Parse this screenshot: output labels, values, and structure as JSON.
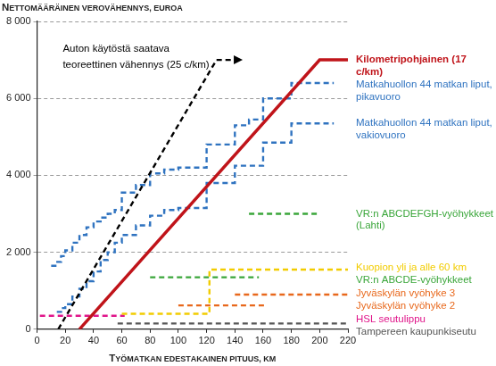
{
  "chart_data": {
    "type": "line",
    "y_label": "Nettomääräinen verovähennys, euroa",
    "x_label": "Työmatkan edestakainen pituus, km",
    "xlim": [
      0,
      220
    ],
    "xticks": [
      0,
      20,
      40,
      60,
      80,
      100,
      120,
      140,
      160,
      180,
      200,
      220
    ],
    "ylim": [
      0,
      8000
    ],
    "yticks": [
      0,
      {
        "value": 2000,
        "label": "2 000"
      },
      {
        "value": 4000,
        "label": "4 000"
      },
      {
        "value": 6000,
        "label": "6 000"
      },
      {
        "value": 8000,
        "label": "8 000"
      }
    ],
    "grid": true,
    "legend": "right",
    "series": [
      {
        "name": "Auton käytöstä saatava teoreettinen vähennys (25 c/km)",
        "color": "#000000",
        "line_style": "dashed",
        "marker": "arrow",
        "x": [
          15,
          127,
          143
        ],
        "values": [
          0,
          7000,
          7000
        ]
      },
      {
        "name": "Kilometripohjainen (17 c/km)",
        "color": "#c0141a",
        "line_style": "solid",
        "x": [
          30,
          200,
          220
        ],
        "values": [
          0,
          7000,
          7000
        ]
      },
      {
        "name": "Matkahuollon 44 matkan liput, pikavuoro",
        "color": "#2f73c0",
        "line_style": "dashed",
        "x": [
          10,
          13,
          13,
          17,
          17,
          20,
          20,
          25,
          25,
          30,
          30,
          35,
          35,
          40,
          40,
          45,
          45,
          50,
          50,
          55,
          55,
          60,
          60,
          70,
          70,
          80,
          80,
          90,
          90,
          100,
          100,
          120,
          120,
          140,
          140,
          150,
          150,
          160,
          160,
          180,
          180,
          210
        ],
        "values": [
          1650,
          1650,
          1750,
          1750,
          1900,
          1900,
          2050,
          2050,
          2250,
          2250,
          2450,
          2450,
          2650,
          2650,
          2800,
          2800,
          2900,
          2900,
          3000,
          3000,
          3100,
          3100,
          3550,
          3550,
          3750,
          3750,
          4050,
          4050,
          4150,
          4150,
          4200,
          4200,
          4800,
          4800,
          5300,
          5300,
          5450,
          5450,
          6000,
          6000,
          6400,
          6400
        ]
      },
      {
        "name": "Matkahuollon 44 matkan liput, vakiovuoro",
        "color": "#2f73c0",
        "line_style": "dashed",
        "x": [
          14,
          17,
          17,
          20,
          20,
          25,
          25,
          30,
          30,
          35,
          35,
          40,
          40,
          45,
          45,
          50,
          50,
          55,
          55,
          60,
          60,
          70,
          70,
          80,
          80,
          90,
          90,
          100,
          100,
          120,
          120,
          140,
          140,
          160,
          160,
          180,
          180,
          210
        ],
        "values": [
          450,
          450,
          550,
          550,
          650,
          650,
          850,
          850,
          1050,
          1050,
          1250,
          1250,
          1500,
          1500,
          1800,
          1800,
          2000,
          2000,
          2250,
          2250,
          2450,
          2450,
          2700,
          2700,
          2950,
          2950,
          3100,
          3100,
          3150,
          3150,
          3800,
          3800,
          4250,
          4250,
          4850,
          4850,
          5350,
          5350
        ]
      },
      {
        "name": "VR:n ABCDEFGH-vyöhykkeet (Lahti)",
        "color": "#3aa63a",
        "line_style": "dashed",
        "x": [
          150,
          198
        ],
        "values": [
          3000,
          3000
        ]
      },
      {
        "name": "Kuopion yli ja alle 60 km",
        "color": "#f2cc00",
        "line_style": "dashed",
        "x": [
          60,
          122,
          122,
          220
        ],
        "values": [
          400,
          400,
          1550,
          1550
        ]
      },
      {
        "name": "VR:n ABCDE-vyöhykkeet",
        "color": "#3aa63a",
        "line_style": "dashed",
        "x": [
          80,
          157
        ],
        "values": [
          1350,
          1350
        ]
      },
      {
        "name": "Jyväskylän vyöhyke 3",
        "color": "#e8681c",
        "line_style": "dashed",
        "x": [
          140,
          220
        ],
        "values": [
          900,
          900
        ]
      },
      {
        "name": "Jyväskylän vyöhyke 2",
        "color": "#e8681c",
        "line_style": "dashed",
        "x": [
          100,
          163
        ],
        "values": [
          620,
          620
        ]
      },
      {
        "name": "HSL seutulippu",
        "color": "#e0158a",
        "line_style": "dashed",
        "x": [
          2,
          62
        ],
        "values": [
          350,
          350
        ]
      },
      {
        "name": "Tampereen kaupunkiseutu",
        "color": "#555555",
        "line_style": "dashed",
        "x": [
          57,
          220
        ],
        "values": [
          150,
          150
        ]
      }
    ]
  }
}
